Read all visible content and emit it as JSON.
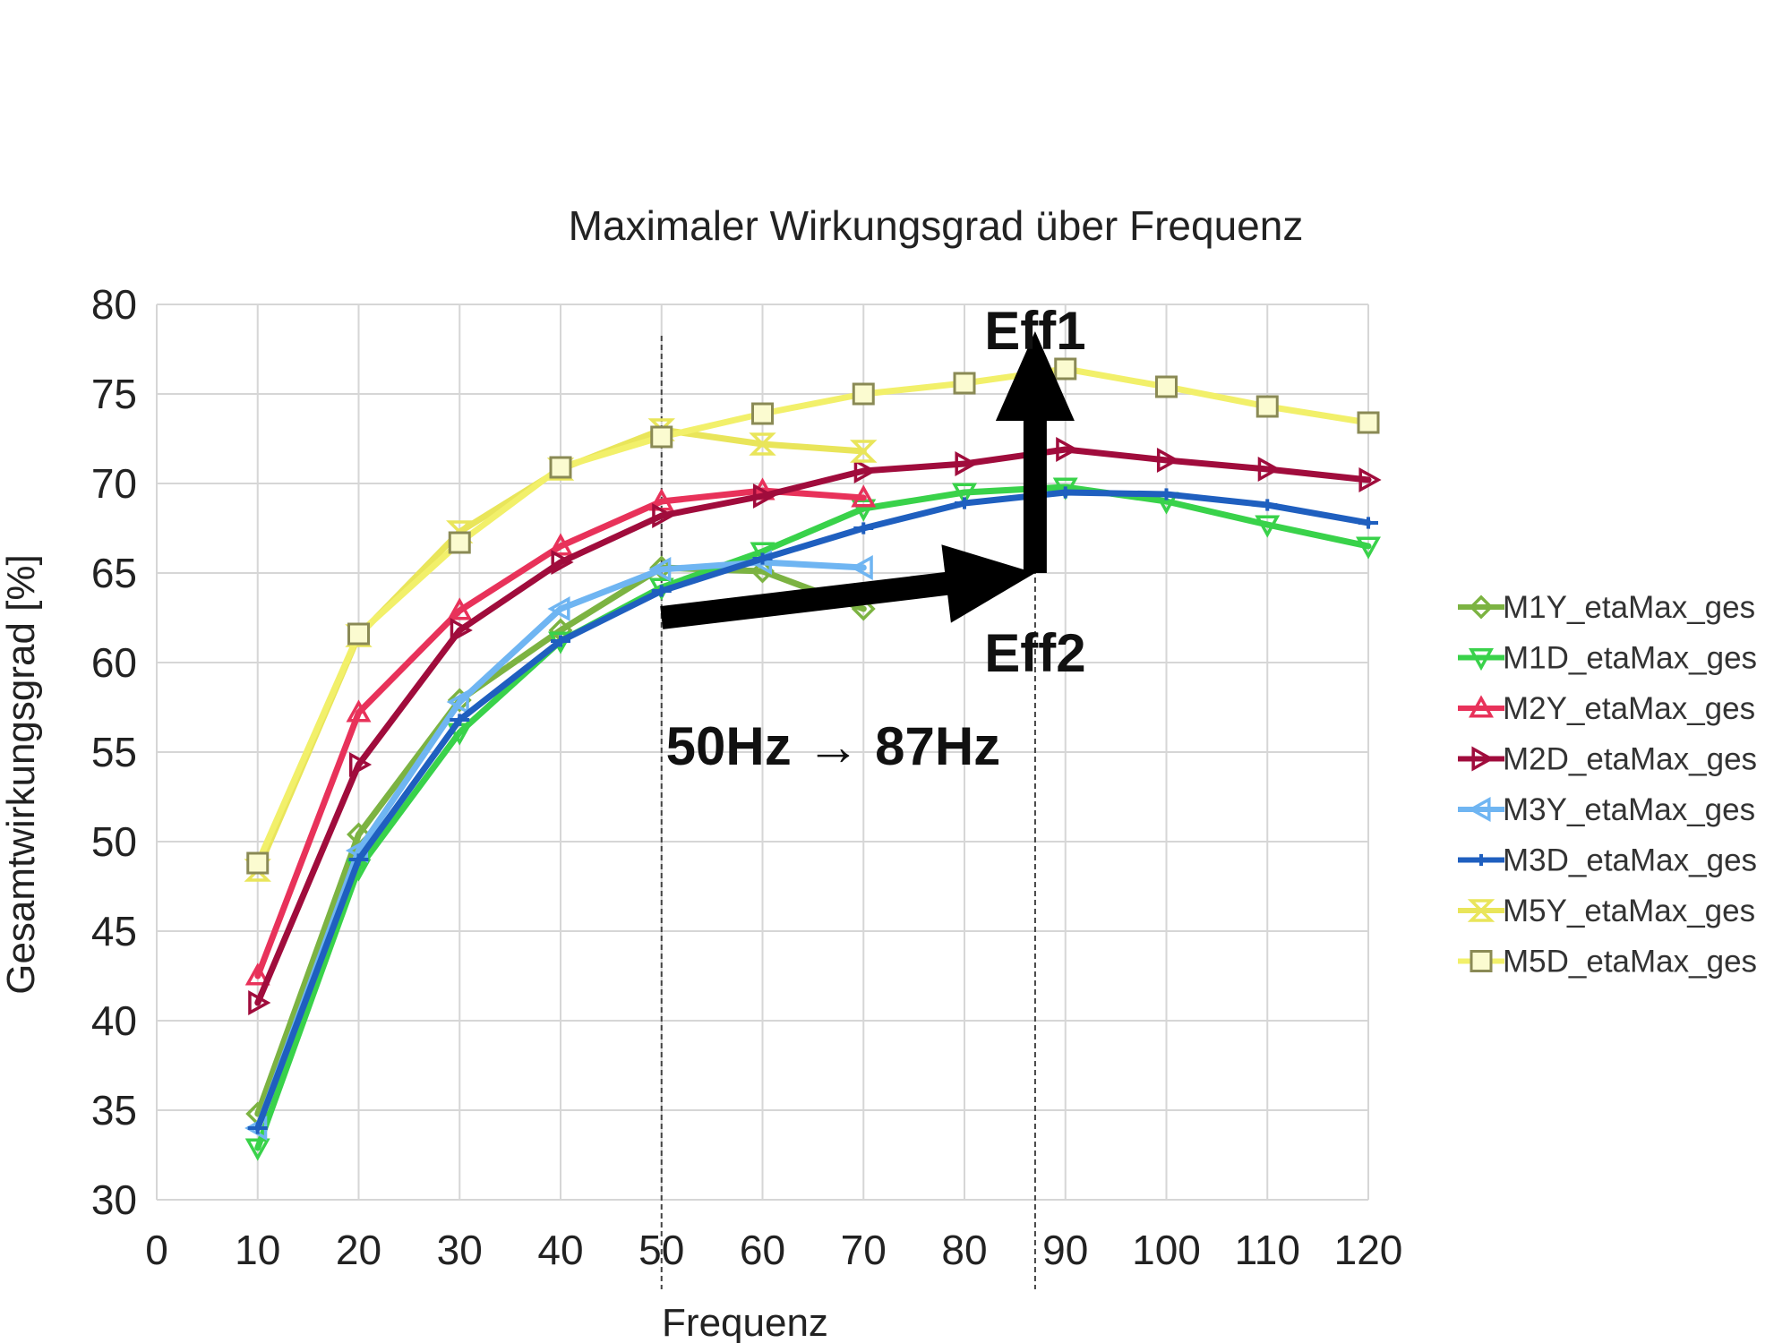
{
  "chart_data": {
    "type": "line",
    "title": "Maximaler Wirkungsgrad über Frequenz",
    "xlabel": "Frequenz",
    "ylabel": "Gesamtwirkungsgrad [%]",
    "xlim": [
      0,
      120
    ],
    "ylim": [
      30,
      80
    ],
    "xticks": [
      "0",
      "10",
      "20",
      "30",
      "40",
      "50",
      "60",
      "70",
      "80",
      "90",
      "100",
      "110",
      "120"
    ],
    "yticks": [
      "30",
      "35",
      "40",
      "45",
      "50",
      "55",
      "60",
      "65",
      "70",
      "75",
      "80"
    ],
    "grid": true,
    "legend_position": "right",
    "series": [
      {
        "name": "M1Y_etaMax_ges",
        "color": "#7cb342",
        "marker": "diamond",
        "x": [
          10,
          20,
          30,
          40,
          50,
          60,
          70
        ],
        "y": [
          34.8,
          50.4,
          57.9,
          61.8,
          65.3,
          65.1,
          63.0
        ]
      },
      {
        "name": "M1D_etaMax_ges",
        "color": "#39d24a",
        "marker": "triangle-down",
        "x": [
          10,
          20,
          30,
          40,
          50,
          60,
          70,
          80,
          90,
          100,
          110,
          120
        ],
        "y": [
          32.9,
          48.5,
          56.1,
          61.2,
          64.2,
          66.2,
          68.6,
          69.5,
          69.8,
          69.0,
          67.7,
          66.5
        ]
      },
      {
        "name": "M2Y_etaMax_ges",
        "color": "#e8325a",
        "marker": "triangle-up",
        "x": [
          10,
          20,
          30,
          40,
          50,
          60,
          70
        ],
        "y": [
          42.5,
          57.2,
          62.9,
          66.5,
          69.0,
          69.6,
          69.2
        ]
      },
      {
        "name": "M2D_etaMax_ges",
        "color": "#a00c3c",
        "marker": "triangle-right",
        "x": [
          10,
          20,
          30,
          40,
          50,
          60,
          70,
          80,
          90,
          100,
          110,
          120
        ],
        "y": [
          41.0,
          54.3,
          61.8,
          65.6,
          68.2,
          69.3,
          70.7,
          71.1,
          71.9,
          71.3,
          70.8,
          70.2
        ]
      },
      {
        "name": "M3Y_etaMax_ges",
        "color": "#6fb5f2",
        "marker": "triangle-left",
        "x": [
          10,
          20,
          30,
          40,
          50,
          60,
          70
        ],
        "y": [
          34.0,
          49.5,
          57.8,
          63.0,
          65.2,
          65.6,
          65.3
        ]
      },
      {
        "name": "M3D_etaMax_ges",
        "color": "#1f5fbf",
        "marker": "cross",
        "x": [
          10,
          20,
          30,
          40,
          50,
          60,
          70,
          80,
          90,
          100,
          110,
          120
        ],
        "y": [
          34.0,
          49.0,
          56.8,
          61.2,
          64.0,
          65.8,
          67.5,
          68.9,
          69.5,
          69.4,
          68.8,
          67.8
        ]
      },
      {
        "name": "M5Y_etaMax_ges",
        "color": "#e9e55a",
        "marker": "hourglass",
        "x": [
          10,
          20,
          30,
          40,
          50,
          60,
          70
        ],
        "y": [
          48.4,
          61.5,
          67.3,
          70.8,
          73.0,
          72.2,
          71.8
        ]
      },
      {
        "name": "M5D_etaMax_ges",
        "color": "#f2f06a",
        "marker": "square",
        "x": [
          10,
          20,
          30,
          40,
          50,
          60,
          70,
          80,
          90,
          100,
          110,
          120
        ],
        "y": [
          48.8,
          61.6,
          66.7,
          70.9,
          72.6,
          73.9,
          75.0,
          75.6,
          76.4,
          75.4,
          74.3,
          73.4
        ]
      }
    ],
    "annotations": [
      {
        "text": "Eff1",
        "x": 87,
        "y": 77.5
      },
      {
        "text": "Eff2",
        "x": 87,
        "y": 59.5
      },
      {
        "text": "50Hz → 87Hz",
        "x": 67,
        "y": 54.3
      }
    ],
    "vertical_lines_x": [
      50,
      87
    ],
    "arrows": [
      {
        "from": [
          50,
          62.5
        ],
        "to": [
          87,
          65
        ]
      },
      {
        "from": [
          87,
          65
        ],
        "to": [
          87,
          78.5
        ]
      }
    ]
  }
}
